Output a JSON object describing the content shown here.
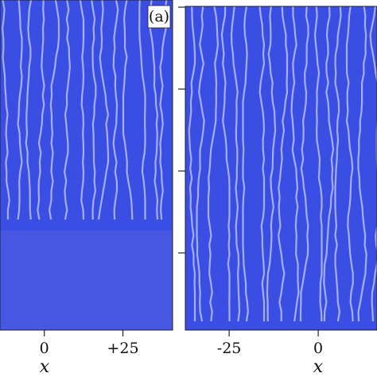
{
  "chart_data": [
    {
      "type": "heatmap",
      "annotation": "(a)",
      "xlabel": "x",
      "xlim": [
        -14.1,
        40.8
      ],
      "xticks": [
        0,
        {
          "value": 25,
          "label": "+25"
        }
      ]
    },
    {
      "type": "heatmap",
      "xlabel": "x",
      "xlim": [
        -37.3,
        16.5
      ],
      "xticks": [
        -25,
        0
      ]
    }
  ]
}
